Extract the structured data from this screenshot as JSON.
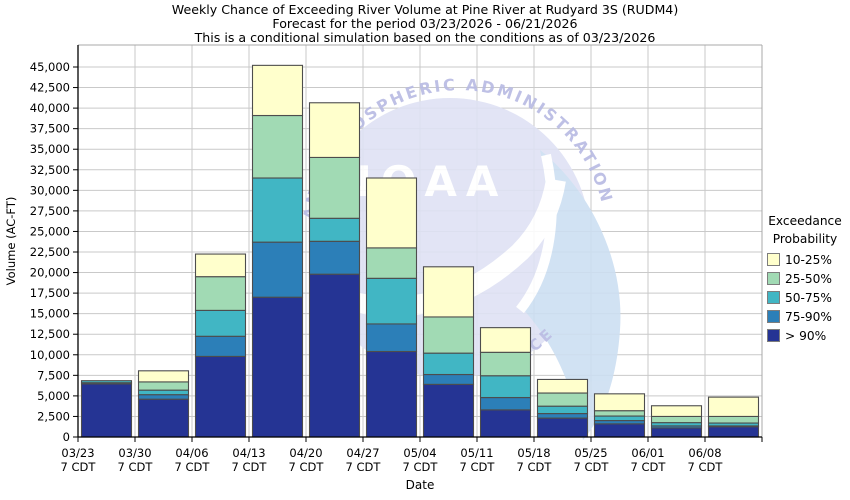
{
  "chart_data": {
    "type": "bar",
    "stacked": true,
    "title": "Weekly Chance of Exceeding River Volume at Pine River at Rudyard 3S (RUDM4)",
    "subtitle": "Forecast for the period 03/23/2026 - 06/21/2026",
    "note": "This is a conditional simulation based on the conditions as of 03/23/2026",
    "xlabel": "Date",
    "ylabel": "Volume (AC-FT)",
    "ylim": [
      0,
      45000
    ],
    "ytick_step": 2500,
    "grid": "both",
    "categories": [
      "03/23",
      "03/30",
      "04/06",
      "04/13",
      "04/20",
      "04/27",
      "05/04",
      "05/11",
      "05/18",
      "05/25",
      "06/01",
      "06/08"
    ],
    "tick_time_label": "7 CDT",
    "series": [
      {
        "name": "> 90%",
        "color": "#253494",
        "values": [
          6450,
          4600,
          9800,
          17000,
          19800,
          10400,
          6400,
          3300,
          2300,
          1600,
          1100,
          1250
        ]
      },
      {
        "name": "75-90%",
        "color": "#2C7FB8",
        "values": [
          150,
          550,
          2450,
          6700,
          4000,
          3350,
          1200,
          1500,
          550,
          400,
          250,
          100
        ]
      },
      {
        "name": "50-75%",
        "color": "#41B6C4",
        "values": [
          250,
          550,
          3150,
          7800,
          2800,
          5550,
          2600,
          2650,
          900,
          550,
          400,
          350
        ]
      },
      {
        "name": "25-50%",
        "color": "#A1DAB4",
        "values": [
          0,
          1000,
          4100,
          7600,
          7400,
          3700,
          4400,
          2850,
          1600,
          650,
          750,
          800
        ]
      },
      {
        "name": "10-25%",
        "color": "#FFFFCC",
        "values": [
          0,
          1350,
          2750,
          6100,
          6650,
          8500,
          6100,
          3000,
          1650,
          2050,
          1300,
          2350
        ]
      }
    ],
    "legend": {
      "title_line1": "Exceedance",
      "title_line2": "Probability",
      "items_top_to_bottom": [
        {
          "label": "10-25%",
          "color": "#FFFFCC"
        },
        {
          "label": "25-50%",
          "color": "#A1DAB4"
        },
        {
          "label": "50-75%",
          "color": "#41B6C4"
        },
        {
          "label": "75-90%",
          "color": "#2C7FB8"
        },
        {
          "label": "> 90%",
          "color": "#253494"
        }
      ]
    }
  },
  "watermark": {
    "arc_text": "AND ATMOSPHERIC ADMINISTRATION",
    "center_text": "NOAA",
    "bottom_text": "RCE"
  },
  "style_colors": {
    "gridline": "#c9c9c9",
    "axis": "#000000",
    "frame": "#a8a8a8",
    "bar_outline": "#4d4d4d",
    "watermark_disc": "#dfe2f4",
    "watermark_text": "#b7bae3",
    "watermark_wing": "#cddff2"
  }
}
